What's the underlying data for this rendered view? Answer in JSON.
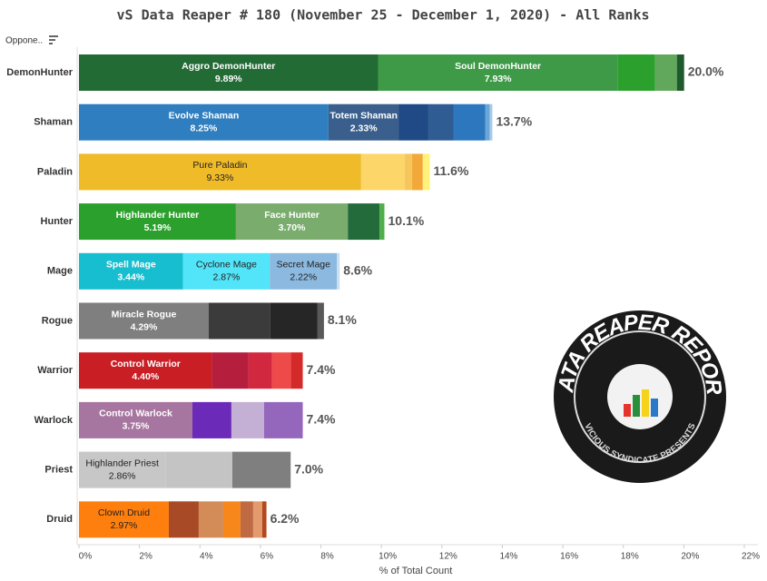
{
  "chart_data": {
    "type": "stacked-bar-horizontal",
    "title": "vS Data Reaper # 180 (November 25 - December 1, 2020) - All Ranks",
    "filter_label": "Oppone..",
    "x_axis_label": "% of Total Count",
    "categories": [
      "DemonHunter",
      "Shaman",
      "Paladin",
      "Hunter",
      "Mage",
      "Rogue",
      "Warrior",
      "Warlock",
      "Priest",
      "Druid"
    ],
    "segments": [
      [
        {
          "label": "Aggro DemonHunter",
          "value": 9.89,
          "value_label": "9.89%",
          "color": "#236b35"
        },
        {
          "label": "Soul DemonHunter",
          "value": 7.93,
          "value_label": "7.93%",
          "color": "#3e9a46"
        },
        {
          "value": 1.23,
          "color": "#2ca02c"
        },
        {
          "value": 0.72,
          "color": "#61a85c"
        },
        {
          "value": 0.24,
          "color": "#1f5a2d"
        }
      ],
      [
        {
          "label": "Evolve Shaman",
          "value": 8.25,
          "value_label": "8.25%",
          "color": "#2f7ebf"
        },
        {
          "label": "Totem Shaman",
          "value": 2.33,
          "value_label": "2.33%",
          "color": "#3a5f8c"
        },
        {
          "value": 0.96,
          "color": "#1f4a85"
        },
        {
          "value": 0.84,
          "color": "#2e5c93"
        },
        {
          "value": 1.05,
          "color": "#2c77bd"
        },
        {
          "value": 0.15,
          "color": "#6aa6d8"
        },
        {
          "value": 0.09,
          "color": "#a9cbe8"
        }
      ],
      [
        {
          "label": "Pure Paladin",
          "value": 9.33,
          "value_label": "9.33%",
          "color": "#f0bb29"
        },
        {
          "value": 1.44,
          "color": "#fdd66a"
        },
        {
          "value": 0.24,
          "color": "#f6c65a"
        },
        {
          "value": 0.36,
          "color": "#f2a93a"
        },
        {
          "value": 0.23,
          "color": "#fff27a"
        }
      ],
      [
        {
          "label": "Highlander Hunter",
          "value": 5.19,
          "value_label": "5.19%",
          "color": "#2ca02c"
        },
        {
          "label": "Face Hunter",
          "value": 3.7,
          "value_label": "3.70%",
          "color": "#79ac6d"
        },
        {
          "value": 1.05,
          "color": "#236b3a"
        },
        {
          "value": 0.16,
          "color": "#4fae4a"
        }
      ],
      [
        {
          "label": "Spell Mage",
          "value": 3.44,
          "value_label": "3.44%",
          "color": "#17becf"
        },
        {
          "label": "Cyclone Mage",
          "value": 2.87,
          "value_label": "2.87%",
          "color": "#52e4f9"
        },
        {
          "label": "Secret Mage",
          "value": 2.22,
          "value_label": "2.22%",
          "color": "#8cb9e0"
        },
        {
          "value": 0.09,
          "color": "#c9dff0"
        }
      ],
      [
        {
          "label": "Miracle Rogue",
          "value": 4.29,
          "value_label": "4.29%",
          "color": "#7f7f7f"
        },
        {
          "value": 2.04,
          "color": "#3b3b3b"
        },
        {
          "value": 1.56,
          "color": "#262626"
        },
        {
          "value": 0.21,
          "color": "#595959"
        }
      ],
      [
        {
          "label": "Control Warrior",
          "value": 4.4,
          "value_label": "4.40%",
          "color": "#c81e24"
        },
        {
          "value": 1.2,
          "color": "#b51f3d"
        },
        {
          "value": 0.78,
          "color": "#d2283f"
        },
        {
          "value": 0.63,
          "color": "#ee4a4a"
        },
        {
          "value": 0.39,
          "color": "#d42a2a"
        }
      ],
      [
        {
          "label": "Control Warlock",
          "value": 3.75,
          "value_label": "3.75%",
          "color": "#a776a0"
        },
        {
          "value": 1.29,
          "color": "#6c2ab8"
        },
        {
          "value": 1.08,
          "color": "#c5b0d5"
        },
        {
          "value": 1.28,
          "color": "#9467bd"
        }
      ],
      [
        {
          "label": "Highlander Priest",
          "value": 2.86,
          "value_label": "2.86%",
          "color": "#c7c7c7"
        },
        {
          "value": 2.21,
          "color": "#c4c4c4"
        },
        {
          "value": 1.93,
          "color": "#7f7f7f"
        }
      ],
      [
        {
          "label": "Clown Druid",
          "value": 2.97,
          "value_label": "2.97%",
          "color": "#ff7f0e"
        },
        {
          "value": 0.99,
          "color": "#a84a25"
        },
        {
          "value": 0.81,
          "color": "#d38b58"
        },
        {
          "value": 0.57,
          "color": "#f7871b"
        },
        {
          "value": 0.42,
          "color": "#c06a43"
        },
        {
          "value": 0.3,
          "color": "#e39a6c"
        },
        {
          "value": 0.14,
          "color": "#b3471e"
        }
      ]
    ],
    "total_labels": [
      "20.0%",
      "13.7%",
      "11.6%",
      "10.1%",
      "8.6%",
      "8.1%",
      "7.4%",
      "7.4%",
      "7.0%",
      "6.2%"
    ],
    "xlim": [
      0,
      22.45
    ],
    "xticks": [
      {
        "value": 0,
        "label": "0%"
      },
      {
        "value": 2,
        "label": "2%"
      },
      {
        "value": 4,
        "label": "4%"
      },
      {
        "value": 6,
        "label": "6%"
      },
      {
        "value": 8,
        "label": "8%"
      },
      {
        "value": 10,
        "label": "10%"
      },
      {
        "value": 12,
        "label": "12%"
      },
      {
        "value": 14,
        "label": "14%"
      },
      {
        "value": 16,
        "label": "16%"
      },
      {
        "value": 18,
        "label": "18%"
      },
      {
        "value": 20,
        "label": "20%"
      },
      {
        "value": 22,
        "label": "22%"
      }
    ],
    "logo": {
      "title": "DATA REAPER REPORT",
      "subtitle": "VICIOUS SYNDICATE PRESENTS"
    }
  }
}
